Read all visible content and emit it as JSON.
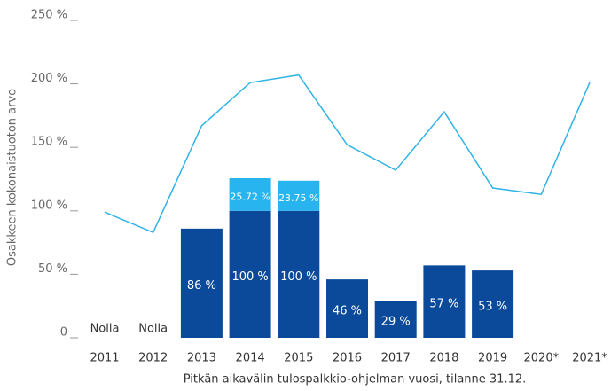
{
  "chart_data": {
    "type": "bar",
    "y_label": "Osakkeen kokonaistuoton arvo",
    "x_label": "Pitkän aikavälin tulospalkkio-ohjelman vuosi, tilanne 31.12.",
    "categories": [
      "2011",
      "2012",
      "2013",
      "2014",
      "2015",
      "2016",
      "2017",
      "2018",
      "2019",
      "2020*",
      "2021*"
    ],
    "series": [
      {
        "color": "#0b4a9b",
        "values": [
          0,
          0,
          86,
          100,
          100,
          46,
          29,
          57,
          53,
          null,
          null
        ],
        "value_labels": [
          "Nolla",
          "Nolla",
          "86 %",
          "100 %",
          "100 %",
          "46 %",
          "29 %",
          "57 %",
          "53 %",
          null,
          null
        ]
      },
      {
        "color": "#27b4ef",
        "values": [
          null,
          null,
          null,
          25.72,
          23.75,
          null,
          null,
          null,
          null,
          null,
          null
        ],
        "value_labels": [
          null,
          null,
          null,
          "25.72 %",
          "23.75 %",
          null,
          null,
          null,
          null,
          null,
          null
        ]
      },
      {
        "type": "line",
        "color": "#2fb3e6",
        "values": [
          99,
          83,
          167,
          201,
          207,
          152,
          132,
          178,
          118,
          113,
          201
        ]
      }
    ],
    "ylim": [
      0,
      250
    ],
    "yticks": [
      0,
      {
        "value": 50,
        "label": "50 %"
      },
      {
        "value": 100,
        "label": "100 %"
      },
      {
        "value": 150,
        "label": "150 %"
      },
      {
        "value": 200,
        "label": "200 %"
      },
      {
        "value": 250,
        "label": "250 %"
      }
    ]
  }
}
